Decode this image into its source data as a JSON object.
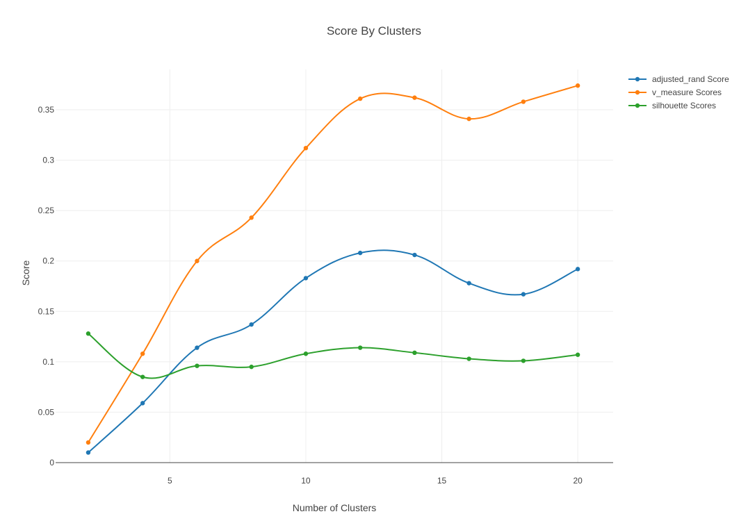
{
  "chart_data": {
    "type": "line",
    "title": "Score By Clusters",
    "xlabel": "Number of Clusters",
    "ylabel": "Score",
    "x": [
      2,
      4,
      6,
      8,
      10,
      12,
      14,
      16,
      18,
      20
    ],
    "xlim": [
      0.8,
      21.3
    ],
    "ylim": [
      0,
      0.39
    ],
    "x_ticks": [
      5,
      10,
      15,
      20
    ],
    "y_ticks": [
      0,
      0.05,
      0.1,
      0.15,
      0.2,
      0.25,
      0.3,
      0.35
    ],
    "x_tick_labels": [
      "5",
      "10",
      "15",
      "20"
    ],
    "y_tick_labels": [
      "0",
      "0.05",
      "0.1",
      "0.15",
      "0.2",
      "0.25",
      "0.3",
      "0.35"
    ],
    "grid": true,
    "legend_position": "top-right",
    "line_shape": "spline",
    "series": [
      {
        "name": "adjusted_rand Score",
        "color": "#1f77b4",
        "values": [
          0.01,
          0.059,
          0.114,
          0.137,
          0.183,
          0.208,
          0.206,
          0.178,
          0.167,
          0.192
        ]
      },
      {
        "name": "v_measure Scores",
        "color": "#ff7f0e",
        "values": [
          0.02,
          0.108,
          0.2,
          0.243,
          0.312,
          0.361,
          0.362,
          0.341,
          0.358,
          0.374
        ]
      },
      {
        "name": "silhouette Scores",
        "color": "#2ca02c",
        "values": [
          0.128,
          0.085,
          0.096,
          0.095,
          0.108,
          0.114,
          0.109,
          0.103,
          0.101,
          0.107
        ]
      }
    ]
  }
}
